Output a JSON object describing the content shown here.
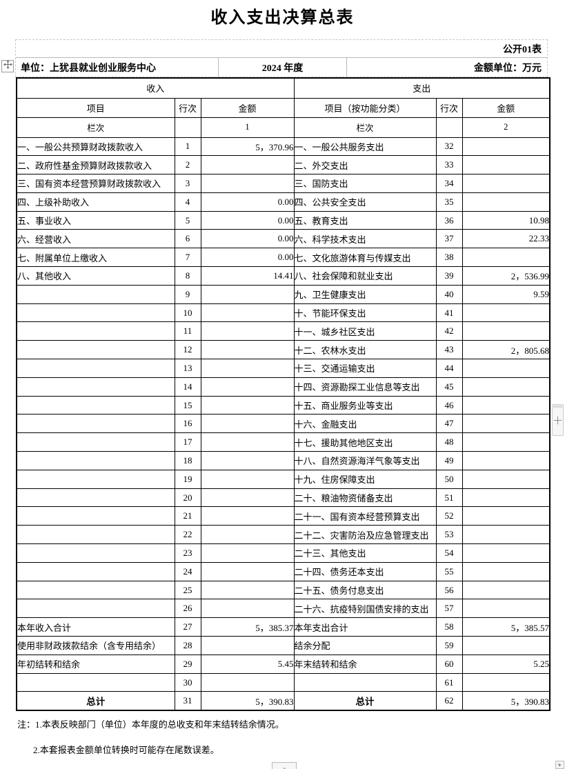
{
  "title": "收入支出决算总表",
  "meta": {
    "sheet_label": "公开01表",
    "unit_label": "单位：上犹县就业创业服务中心",
    "year_label": "2024 年度",
    "amount_unit_label": "金额单位：万元"
  },
  "table": {
    "income_header": "收入",
    "expense_header": "支出",
    "columns": {
      "income_item": "项目",
      "income_row_no": "行次",
      "income_amount": "金额",
      "expense_item": "项目（按功能分类）",
      "expense_row_no": "行次",
      "expense_amount": "金额"
    },
    "index_row": {
      "income_label": "栏次",
      "income_col_index": "1",
      "expense_label": "栏次",
      "expense_col_index": "2"
    },
    "rows": [
      {
        "i_item": "一、一般公共预算财政拨款收入",
        "i_no": "1",
        "i_amt": "5，370.96",
        "e_item": "一、一般公共服务支出",
        "e_no": "32",
        "e_amt": ""
      },
      {
        "i_item": "二、政府性基金预算财政拨款收入",
        "i_no": "2",
        "i_amt": "",
        "e_item": "二、外交支出",
        "e_no": "33",
        "e_amt": ""
      },
      {
        "i_item": "三、国有资本经营预算财政拨款收入",
        "i_no": "3",
        "i_amt": "",
        "e_item": "三、国防支出",
        "e_no": "34",
        "e_amt": ""
      },
      {
        "i_item": "四、上级补助收入",
        "i_no": "4",
        "i_amt": "0.00",
        "e_item": "四、公共安全支出",
        "e_no": "35",
        "e_amt": ""
      },
      {
        "i_item": "五、事业收入",
        "i_no": "5",
        "i_amt": "0.00",
        "e_item": "五、教育支出",
        "e_no": "36",
        "e_amt": "10.98"
      },
      {
        "i_item": "六、经营收入",
        "i_no": "6",
        "i_amt": "0.00",
        "e_item": "六、科学技术支出",
        "e_no": "37",
        "e_amt": "22.33"
      },
      {
        "i_item": "七、附属单位上缴收入",
        "i_no": "7",
        "i_amt": "0.00",
        "e_item": "七、文化旅游体育与传媒支出",
        "e_no": "38",
        "e_amt": ""
      },
      {
        "i_item": "八、其他收入",
        "i_no": "8",
        "i_amt": "14.41",
        "e_item": "八、社会保障和就业支出",
        "e_no": "39",
        "e_amt": "2，536.99"
      },
      {
        "i_item": "",
        "i_no": "9",
        "i_amt": "",
        "e_item": "九、卫生健康支出",
        "e_no": "40",
        "e_amt": "9.59"
      },
      {
        "i_item": "",
        "i_no": "10",
        "i_amt": "",
        "e_item": "十、节能环保支出",
        "e_no": "41",
        "e_amt": ""
      },
      {
        "i_item": "",
        "i_no": "11",
        "i_amt": "",
        "e_item": "十一、城乡社区支出",
        "e_no": "42",
        "e_amt": ""
      },
      {
        "i_item": "",
        "i_no": "12",
        "i_amt": "",
        "e_item": "十二、农林水支出",
        "e_no": "43",
        "e_amt": "2，805.68"
      },
      {
        "i_item": "",
        "i_no": "13",
        "i_amt": "",
        "e_item": "十三、交通运输支出",
        "e_no": "44",
        "e_amt": ""
      },
      {
        "i_item": "",
        "i_no": "14",
        "i_amt": "",
        "e_item": "十四、资源勘探工业信息等支出",
        "e_no": "45",
        "e_amt": ""
      },
      {
        "i_item": "",
        "i_no": "15",
        "i_amt": "",
        "e_item": "十五、商业服务业等支出",
        "e_no": "46",
        "e_amt": ""
      },
      {
        "i_item": "",
        "i_no": "16",
        "i_amt": "",
        "e_item": "十六、金融支出",
        "e_no": "47",
        "e_amt": ""
      },
      {
        "i_item": "",
        "i_no": "17",
        "i_amt": "",
        "e_item": "十七、援助其他地区支出",
        "e_no": "48",
        "e_amt": ""
      },
      {
        "i_item": "",
        "i_no": "18",
        "i_amt": "",
        "e_item": "十八、自然资源海洋气象等支出",
        "e_no": "49",
        "e_amt": ""
      },
      {
        "i_item": "",
        "i_no": "19",
        "i_amt": "",
        "e_item": "十九、住房保障支出",
        "e_no": "50",
        "e_amt": ""
      },
      {
        "i_item": "",
        "i_no": "20",
        "i_amt": "",
        "e_item": "二十、粮油物资储备支出",
        "e_no": "51",
        "e_amt": ""
      },
      {
        "i_item": "",
        "i_no": "21",
        "i_amt": "",
        "e_item": "二十一、国有资本经营预算支出",
        "e_no": "52",
        "e_amt": ""
      },
      {
        "i_item": "",
        "i_no": "22",
        "i_amt": "",
        "e_item": "二十二、灾害防治及应急管理支出",
        "e_no": "53",
        "e_amt": ""
      },
      {
        "i_item": "",
        "i_no": "23",
        "i_amt": "",
        "e_item": "二十三、其他支出",
        "e_no": "54",
        "e_amt": ""
      },
      {
        "i_item": "",
        "i_no": "24",
        "i_amt": "",
        "e_item": "二十四、债务还本支出",
        "e_no": "55",
        "e_amt": ""
      },
      {
        "i_item": "",
        "i_no": "25",
        "i_amt": "",
        "e_item": "二十五、债务付息支出",
        "e_no": "56",
        "e_amt": ""
      },
      {
        "i_item": "",
        "i_no": "26",
        "i_amt": "",
        "e_item": "二十六、抗疫特别国债安排的支出",
        "e_no": "57",
        "e_amt": ""
      },
      {
        "i_item": "本年收入合计",
        "i_no": "27",
        "i_amt": "5，385.37",
        "e_item": "本年支出合计",
        "e_no": "58",
        "e_amt": "5，385.57"
      },
      {
        "i_item": "使用非财政拨款结余（含专用结余）",
        "i_no": "28",
        "i_amt": "",
        "e_item": "结余分配",
        "e_no": "59",
        "e_amt": ""
      },
      {
        "i_item": "年初结转和结余",
        "i_no": "29",
        "i_amt": "5.45",
        "e_item": "年末结转和结余",
        "e_no": "60",
        "e_amt": "5.25"
      },
      {
        "i_item": "",
        "i_no": "30",
        "i_amt": "",
        "e_item": "",
        "e_no": "61",
        "e_amt": ""
      },
      {
        "i_item": "总计",
        "i_no": "31",
        "i_amt": "5，390.83",
        "e_item": "总计",
        "e_no": "62",
        "e_amt": "5，390.83",
        "is_total": true
      }
    ]
  },
  "notes": {
    "line1": "注：1.本表反映部门（单位）本年度的总收支和年末结转结余情况。",
    "line2": "2.本套报表金额单位转换时可能存在尾数误差。"
  },
  "widgets": {
    "side_plus_label": "＋"
  },
  "colors": {
    "table_border": "#000000",
    "meta_border": "#c6c6c6",
    "text": "#000000"
  }
}
